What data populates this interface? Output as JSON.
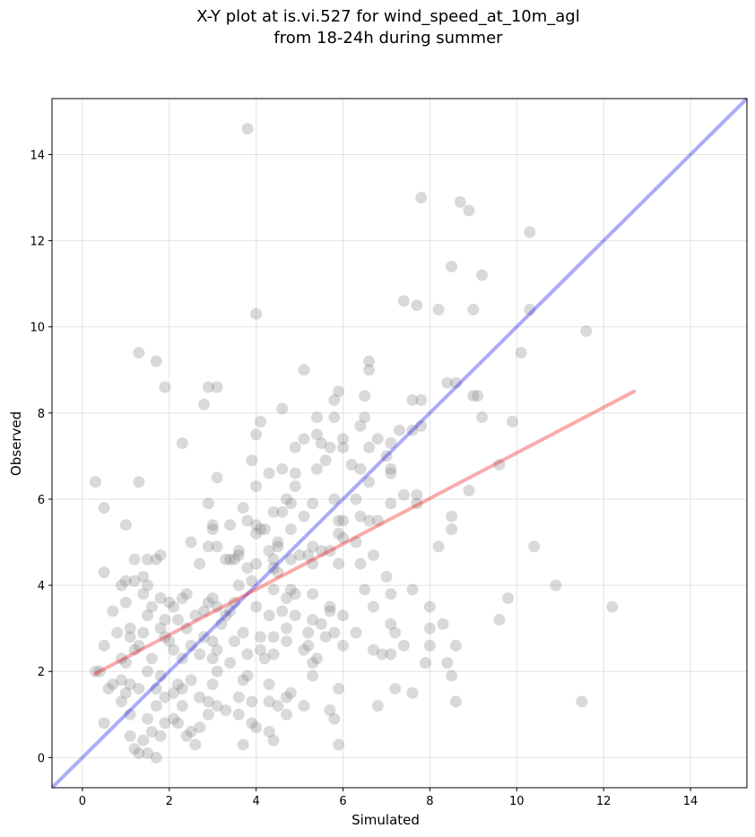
{
  "chart_data": {
    "type": "scatter",
    "title_lines": [
      "X-Y plot at is.vi.527 for wind_speed_at_10m_agl",
      "from 18-24h during summer"
    ],
    "xlabel": "Simulated",
    "ylabel": "Observed",
    "xlim": [
      -0.7,
      15.3
    ],
    "ylim": [
      -0.7,
      15.3
    ],
    "xticks": [
      0,
      2,
      4,
      6,
      8,
      10,
      12,
      14
    ],
    "yticks": [
      0,
      2,
      4,
      6,
      8,
      10,
      12,
      14
    ],
    "grid": true,
    "colors": {
      "points": "#808080",
      "identity_line": "#0000ee",
      "fit_line": "#ee0000"
    },
    "fit_line": {
      "x": [
        0.3,
        12.7
      ],
      "y": [
        1.95,
        8.5
      ]
    },
    "identity_line": {
      "x": [
        -0.7,
        15.3
      ],
      "y": [
        -0.7,
        15.3
      ]
    },
    "points": [
      [
        3.8,
        14.6
      ],
      [
        7.8,
        13.0
      ],
      [
        8.7,
        12.9
      ],
      [
        8.9,
        12.7
      ],
      [
        10.3,
        12.2
      ],
      [
        8.5,
        11.4
      ],
      [
        9.2,
        11.2
      ],
      [
        4.0,
        10.3
      ],
      [
        7.4,
        10.6
      ],
      [
        7.7,
        10.5
      ],
      [
        8.2,
        10.4
      ],
      [
        9.0,
        10.4
      ],
      [
        10.3,
        10.4
      ],
      [
        11.6,
        9.9
      ],
      [
        1.3,
        9.4
      ],
      [
        10.1,
        9.4
      ],
      [
        1.7,
        9.2
      ],
      [
        6.6,
        9.2
      ],
      [
        5.1,
        9.0
      ],
      [
        6.6,
        9.0
      ],
      [
        1.9,
        8.6
      ],
      [
        2.9,
        8.6
      ],
      [
        3.1,
        8.6
      ],
      [
        8.4,
        8.7
      ],
      [
        8.6,
        8.7
      ],
      [
        5.9,
        8.5
      ],
      [
        9.0,
        8.4
      ],
      [
        9.1,
        8.4
      ],
      [
        6.5,
        8.4
      ],
      [
        5.8,
        8.3
      ],
      [
        7.6,
        8.3
      ],
      [
        7.8,
        8.3
      ],
      [
        2.8,
        8.2
      ],
      [
        4.6,
        8.1
      ],
      [
        5.4,
        7.9
      ],
      [
        5.8,
        7.9
      ],
      [
        6.5,
        7.9
      ],
      [
        9.2,
        7.9
      ],
      [
        4.1,
        7.8
      ],
      [
        9.9,
        7.8
      ],
      [
        6.4,
        7.7
      ],
      [
        7.8,
        7.7
      ],
      [
        7.3,
        7.6
      ],
      [
        7.6,
        7.6
      ],
      [
        4.0,
        7.5
      ],
      [
        5.4,
        7.5
      ],
      [
        5.1,
        7.4
      ],
      [
        6.0,
        7.4
      ],
      [
        6.8,
        7.4
      ],
      [
        2.3,
        7.3
      ],
      [
        5.5,
        7.3
      ],
      [
        7.1,
        7.3
      ],
      [
        4.9,
        7.2
      ],
      [
        5.7,
        7.2
      ],
      [
        6.0,
        7.2
      ],
      [
        6.6,
        7.2
      ],
      [
        7.0,
        7.0
      ],
      [
        5.6,
        6.9
      ],
      [
        3.9,
        6.9
      ],
      [
        6.2,
        6.8
      ],
      [
        9.6,
        6.8
      ],
      [
        5.4,
        6.7
      ],
      [
        4.6,
        6.7
      ],
      [
        7.1,
        6.7
      ],
      [
        6.4,
        6.7
      ],
      [
        4.3,
        6.6
      ],
      [
        4.9,
        6.6
      ],
      [
        7.1,
        6.6
      ],
      [
        3.1,
        6.5
      ],
      [
        0.3,
        6.4
      ],
      [
        1.3,
        6.4
      ],
      [
        6.6,
        6.4
      ],
      [
        4.0,
        6.3
      ],
      [
        4.9,
        6.3
      ],
      [
        8.9,
        6.2
      ],
      [
        7.4,
        6.1
      ],
      [
        7.7,
        6.1
      ],
      [
        6.3,
        6.0
      ],
      [
        4.7,
        6.0
      ],
      [
        5.8,
        6.0
      ],
      [
        4.8,
        5.9
      ],
      [
        2.9,
        5.9
      ],
      [
        7.1,
        5.9
      ],
      [
        7.7,
        5.9
      ],
      [
        5.3,
        5.9
      ],
      [
        0.5,
        5.8
      ],
      [
        3.7,
        5.8
      ],
      [
        4.4,
        5.7
      ],
      [
        4.6,
        5.7
      ],
      [
        5.1,
        5.6
      ],
      [
        6.4,
        5.6
      ],
      [
        8.5,
        5.6
      ],
      [
        6.6,
        5.5
      ],
      [
        5.9,
        5.5
      ],
      [
        6.0,
        5.5
      ],
      [
        3.8,
        5.5
      ],
      [
        6.8,
        5.5
      ],
      [
        1.0,
        5.4
      ],
      [
        3.0,
        5.4
      ],
      [
        4.0,
        5.4
      ],
      [
        3.4,
        5.4
      ],
      [
        4.2,
        5.3
      ],
      [
        3.0,
        5.3
      ],
      [
        4.1,
        5.3
      ],
      [
        4.8,
        5.3
      ],
      [
        4.0,
        5.2
      ],
      [
        5.9,
        5.2
      ],
      [
        8.5,
        5.3
      ],
      [
        6.0,
        5.1
      ],
      [
        4.5,
        5.0
      ],
      [
        2.5,
        5.0
      ],
      [
        6.3,
        5.0
      ],
      [
        2.9,
        4.9
      ],
      [
        3.1,
        4.9
      ],
      [
        5.3,
        4.9
      ],
      [
        5.5,
        4.8
      ],
      [
        10.4,
        4.9
      ],
      [
        4.5,
        4.9
      ],
      [
        8.2,
        4.9
      ],
      [
        5.7,
        4.8
      ],
      [
        4.3,
        4.8
      ],
      [
        3.6,
        4.8
      ],
      [
        5.2,
        4.7
      ],
      [
        6.7,
        4.7
      ],
      [
        3.6,
        4.7
      ],
      [
        1.8,
        4.7
      ],
      [
        5.0,
        4.7
      ],
      [
        4.4,
        4.6
      ],
      [
        3.4,
        4.6
      ],
      [
        3.5,
        4.6
      ],
      [
        1.2,
        4.6
      ],
      [
        1.5,
        4.6
      ],
      [
        1.7,
        4.6
      ],
      [
        3.3,
        4.6
      ],
      [
        4.8,
        4.6
      ],
      [
        4.0,
        4.5
      ],
      [
        2.7,
        4.5
      ],
      [
        5.3,
        4.5
      ],
      [
        5.9,
        4.5
      ],
      [
        6.4,
        4.5
      ],
      [
        4.4,
        4.4
      ],
      [
        3.8,
        4.4
      ],
      [
        0.5,
        4.3
      ],
      [
        4.5,
        4.3
      ],
      [
        1.0,
        4.1
      ],
      [
        1.4,
        4.2
      ],
      [
        7.0,
        4.2
      ],
      [
        1.2,
        4.1
      ],
      [
        3.9,
        4.1
      ],
      [
        0.9,
        4.0
      ],
      [
        1.5,
        4.0
      ],
      [
        3.6,
        4.0
      ],
      [
        10.9,
        4.0
      ],
      [
        4.4,
        3.9
      ],
      [
        4.8,
        3.9
      ],
      [
        6.5,
        3.9
      ],
      [
        7.6,
        3.9
      ],
      [
        1.4,
        3.8
      ],
      [
        2.4,
        3.8
      ],
      [
        5.3,
        3.8
      ],
      [
        4.9,
        3.8
      ],
      [
        7.1,
        3.8
      ],
      [
        1.8,
        3.7
      ],
      [
        4.7,
        3.7
      ],
      [
        2.3,
        3.7
      ],
      [
        3.0,
        3.7
      ],
      [
        9.8,
        3.7
      ],
      [
        2.9,
        3.6
      ],
      [
        3.5,
        3.6
      ],
      [
        1.0,
        3.6
      ],
      [
        2.0,
        3.6
      ],
      [
        2.1,
        3.5
      ],
      [
        3.1,
        3.5
      ],
      [
        5.7,
        3.5
      ],
      [
        1.6,
        3.5
      ],
      [
        4.0,
        3.5
      ],
      [
        8.0,
        3.5
      ],
      [
        12.2,
        3.5
      ],
      [
        6.7,
        3.5
      ],
      [
        0.7,
        3.4
      ],
      [
        2.8,
        3.4
      ],
      [
        3.4,
        3.4
      ],
      [
        4.6,
        3.4
      ],
      [
        5.7,
        3.4
      ],
      [
        4.3,
        3.3
      ],
      [
        1.5,
        3.3
      ],
      [
        2.6,
        3.3
      ],
      [
        3.3,
        3.3
      ],
      [
        4.9,
        3.3
      ],
      [
        6.0,
        3.3
      ],
      [
        1.9,
        3.2
      ],
      [
        2.2,
        3.2
      ],
      [
        5.3,
        3.2
      ],
      [
        9.6,
        3.2
      ],
      [
        3.2,
        3.1
      ],
      [
        5.5,
        3.1
      ],
      [
        7.1,
        3.1
      ],
      [
        8.3,
        3.1
      ],
      [
        1.1,
        3.0
      ],
      [
        1.8,
        3.0
      ],
      [
        2.4,
        3.0
      ],
      [
        4.7,
        3.0
      ],
      [
        6.3,
        2.9
      ],
      [
        8.0,
        3.0
      ],
      [
        0.8,
        2.9
      ],
      [
        1.4,
        2.9
      ],
      [
        3.7,
        2.9
      ],
      [
        5.2,
        2.9
      ],
      [
        5.8,
        2.9
      ],
      [
        4.1,
        2.8
      ],
      [
        4.4,
        2.8
      ],
      [
        1.1,
        2.8
      ],
      [
        2.8,
        2.8
      ],
      [
        1.9,
        2.8
      ],
      [
        5.6,
        2.8
      ],
      [
        7.2,
        2.9
      ],
      [
        2.0,
        2.7
      ],
      [
        3.5,
        2.7
      ],
      [
        3.0,
        2.7
      ],
      [
        4.7,
        2.7
      ],
      [
        0.5,
        2.6
      ],
      [
        1.3,
        2.6
      ],
      [
        2.5,
        2.6
      ],
      [
        5.2,
        2.6
      ],
      [
        6.0,
        2.6
      ],
      [
        8.0,
        2.6
      ],
      [
        8.6,
        2.6
      ],
      [
        2.1,
        2.5
      ],
      [
        3.1,
        2.5
      ],
      [
        4.1,
        2.5
      ],
      [
        5.1,
        2.5
      ],
      [
        7.4,
        2.6
      ],
      [
        1.2,
        2.5
      ],
      [
        6.7,
        2.5
      ],
      [
        6.9,
        2.4
      ],
      [
        2.7,
        2.4
      ],
      [
        3.8,
        2.4
      ],
      [
        4.4,
        2.4
      ],
      [
        7.1,
        2.4
      ],
      [
        2.3,
        2.3
      ],
      [
        5.4,
        2.3
      ],
      [
        0.9,
        2.3
      ],
      [
        1.6,
        2.3
      ],
      [
        3.0,
        2.3
      ],
      [
        4.2,
        2.3
      ],
      [
        0.3,
        2.0
      ],
      [
        1.0,
        2.2
      ],
      [
        3.4,
        2.2
      ],
      [
        5.3,
        2.2
      ],
      [
        7.9,
        2.2
      ],
      [
        8.4,
        2.2
      ],
      [
        1.5,
        2.0
      ],
      [
        3.1,
        2.0
      ],
      [
        0.4,
        2.0
      ],
      [
        1.8,
        1.9
      ],
      [
        3.8,
        1.9
      ],
      [
        5.3,
        1.9
      ],
      [
        8.5,
        1.9
      ],
      [
        0.9,
        1.8
      ],
      [
        2.5,
        1.8
      ],
      [
        3.7,
        1.8
      ],
      [
        0.7,
        1.7
      ],
      [
        1.1,
        1.7
      ],
      [
        2.2,
        1.7
      ],
      [
        3.0,
        1.7
      ],
      [
        4.3,
        1.7
      ],
      [
        5.9,
        1.6
      ],
      [
        7.2,
        1.6
      ],
      [
        0.6,
        1.6
      ],
      [
        1.3,
        1.6
      ],
      [
        1.7,
        1.6
      ],
      [
        2.3,
        1.6
      ],
      [
        4.8,
        1.5
      ],
      [
        7.6,
        1.5
      ],
      [
        1.0,
        1.5
      ],
      [
        2.1,
        1.5
      ],
      [
        2.7,
        1.4
      ],
      [
        3.6,
        1.4
      ],
      [
        4.7,
        1.4
      ],
      [
        1.9,
        1.4
      ],
      [
        3.9,
        1.3
      ],
      [
        4.3,
        1.3
      ],
      [
        0.9,
        1.3
      ],
      [
        2.9,
        1.3
      ],
      [
        4.5,
        1.2
      ],
      [
        5.1,
        1.2
      ],
      [
        1.7,
        1.2
      ],
      [
        2.3,
        1.2
      ],
      [
        3.1,
        1.2
      ],
      [
        6.8,
        1.2
      ],
      [
        3.3,
        1.1
      ],
      [
        5.7,
        1.1
      ],
      [
        8.6,
        1.3
      ],
      [
        11.5,
        1.3
      ],
      [
        1.1,
        1.0
      ],
      [
        2.9,
        1.0
      ],
      [
        3.6,
        1.0
      ],
      [
        4.7,
        1.0
      ],
      [
        2.1,
        0.9
      ],
      [
        1.5,
        0.9
      ],
      [
        5.8,
        0.9
      ],
      [
        0.5,
        0.8
      ],
      [
        1.9,
        0.8
      ],
      [
        2.2,
        0.8
      ],
      [
        3.9,
        0.8
      ],
      [
        2.7,
        0.7
      ],
      [
        4.0,
        0.7
      ],
      [
        1.6,
        0.6
      ],
      [
        2.5,
        0.6
      ],
      [
        4.3,
        0.6
      ],
      [
        1.1,
        0.5
      ],
      [
        1.8,
        0.5
      ],
      [
        2.4,
        0.5
      ],
      [
        4.4,
        0.4
      ],
      [
        1.4,
        0.4
      ],
      [
        2.6,
        0.3
      ],
      [
        3.7,
        0.3
      ],
      [
        5.9,
        0.3
      ],
      [
        1.2,
        0.2
      ],
      [
        1.3,
        0.1
      ],
      [
        1.5,
        0.1
      ],
      [
        1.7,
        0.0
      ]
    ]
  }
}
